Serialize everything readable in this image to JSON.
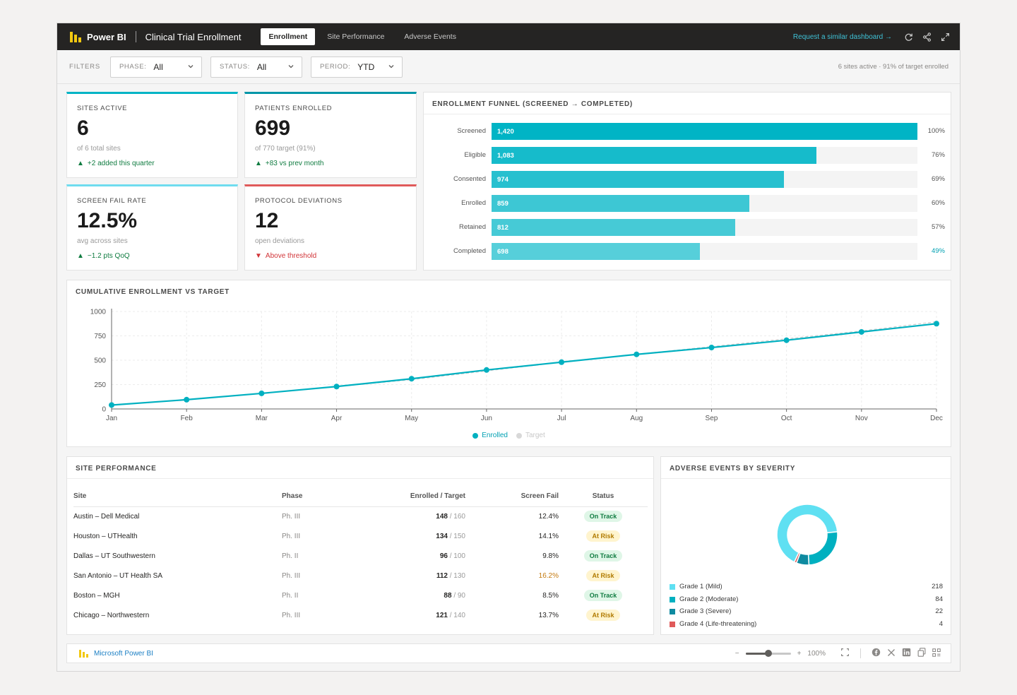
{
  "header": {
    "brand": "Power BI",
    "report_title": "Clinical Trial Enrollment",
    "tabs": [
      {
        "label": "Enrollment",
        "active": true
      },
      {
        "label": "Site Performance",
        "active": false
      },
      {
        "label": "Adverse Events",
        "active": false
      }
    ],
    "request_link": "Request a similar dashboard →",
    "icons": [
      "refresh-icon",
      "share-icon",
      "fullscreen-icon"
    ]
  },
  "filters": {
    "label": "FILTERS",
    "phase": {
      "label": "PHASE:",
      "value": "All"
    },
    "status": {
      "label": "STATUS:",
      "value": "All"
    },
    "period": {
      "label": "PERIOD:",
      "value": "YTD"
    },
    "summary": "6 sites active · 91% of target enrolled"
  },
  "kpis": [
    {
      "label": "SITES ACTIVE",
      "value": "6",
      "sub": "of 6 total sites",
      "trend": "+2 added this quarter",
      "direction": "up",
      "color": "#00b4c5"
    },
    {
      "label": "PATIENTS ENROLLED",
      "value": "699",
      "sub": "of 770 target (91%)",
      "trend": "+83 vs prev month",
      "direction": "up",
      "color": "#0096a8"
    },
    {
      "label": "SCREEN FAIL RATE",
      "value": "12.5%",
      "sub": "avg across sites",
      "trend": "−1.2 pts QoQ",
      "direction": "up",
      "color": "#6fdcef"
    },
    {
      "label": "PROTOCOL DEVIATIONS",
      "value": "12",
      "sub": "open deviations",
      "trend": "Above threshold",
      "direction": "down",
      "color": "#e05a5a"
    }
  ],
  "funnel": {
    "title": "ENROLLMENT FUNNEL (SCREENED → COMPLETED)",
    "stages": [
      {
        "label": "Screened",
        "value": "1,420",
        "pct": "100%",
        "fraction": 1.0,
        "color": "#00b4c5"
      },
      {
        "label": "Eligible",
        "value": "1,083",
        "pct": "76%",
        "fraction": 0.763,
        "color": "#16bbcb"
      },
      {
        "label": "Consented",
        "value": "974",
        "pct": "69%",
        "fraction": 0.686,
        "color": "#27c0cf"
      },
      {
        "label": "Enrolled",
        "value": "859",
        "pct": "60%",
        "fraction": 0.605,
        "color": "#3dc7d4"
      },
      {
        "label": "Retained",
        "value": "812",
        "pct": "57%",
        "fraction": 0.572,
        "color": "#46cad6"
      },
      {
        "label": "Completed",
        "value": "698",
        "pct": "49%",
        "fraction": 0.49,
        "color": "#56cfda"
      }
    ]
  },
  "line_chart": {
    "title": "CUMULATIVE ENROLLMENT VS TARGET",
    "legend": {
      "enrolled": "Enrolled",
      "target": "Target"
    }
  },
  "chart_data": {
    "type": "line",
    "x": [
      "Jan",
      "Feb",
      "Mar",
      "Apr",
      "May",
      "Jun",
      "Jul",
      "Aug",
      "Sep",
      "Oct",
      "Nov",
      "Dec"
    ],
    "series": [
      {
        "name": "Enrolled",
        "values": [
          40,
          95,
          160,
          230,
          310,
          400,
          480,
          560,
          630,
          705,
          790,
          875
        ],
        "color": "#00b0c0"
      },
      {
        "name": "Target",
        "values": [
          40,
          95,
          160,
          230,
          300,
          390,
          480,
          560,
          640,
          720,
          800,
          895
        ],
        "color": "#cccccc"
      }
    ],
    "yticks": [
      "0",
      "250",
      "500",
      "750",
      "1000"
    ],
    "ylim": [
      0,
      1000
    ],
    "grid": true,
    "legend_position": "bottom-center"
  },
  "site_table": {
    "title": "SITE PERFORMANCE",
    "columns": [
      "Site",
      "Phase",
      "Enrolled / Target",
      "Screen Fail",
      "Status"
    ],
    "rows": [
      {
        "site": "Austin – Dell Medical",
        "phase": "Ph. III",
        "enrolled": "148",
        "target": "/ 160",
        "fail": "12.4%",
        "fail_warn": false,
        "status": "On Track"
      },
      {
        "site": "Houston – UTHealth",
        "phase": "Ph. III",
        "enrolled": "134",
        "target": "/ 150",
        "fail": "14.1%",
        "fail_warn": false,
        "status": "At Risk"
      },
      {
        "site": "Dallas – UT Southwestern",
        "phase": "Ph. II",
        "enrolled": "96",
        "target": "/ 100",
        "fail": "9.8%",
        "fail_warn": false,
        "status": "On Track"
      },
      {
        "site": "San Antonio – UT Health SA",
        "phase": "Ph. III",
        "enrolled": "112",
        "target": "/ 130",
        "fail": "16.2%",
        "fail_warn": true,
        "status": "At Risk"
      },
      {
        "site": "Boston – MGH",
        "phase": "Ph. II",
        "enrolled": "88",
        "target": "/ 90",
        "fail": "8.5%",
        "fail_warn": false,
        "status": "On Track"
      },
      {
        "site": "Chicago – Northwestern",
        "phase": "Ph. III",
        "enrolled": "121",
        "target": "/ 140",
        "fail": "13.7%",
        "fail_warn": false,
        "status": "At Risk"
      }
    ]
  },
  "adverse_events": {
    "title": "ADVERSE EVENTS BY SEVERITY",
    "items": [
      {
        "label": "Grade 1 (Mild)",
        "value": "218",
        "count": 218,
        "color": "#5fe0f2"
      },
      {
        "label": "Grade 2 (Moderate)",
        "value": "84",
        "count": 84,
        "color": "#00b0c0"
      },
      {
        "label": "Grade 3 (Severe)",
        "value": "22",
        "count": 22,
        "color": "#0e8aa0"
      },
      {
        "label": "Grade 4 (Life-threatening)",
        "value": "4",
        "count": 4,
        "color": "#e05a5a"
      }
    ]
  },
  "footer": {
    "brand": "Microsoft Power BI",
    "zoom": "100%",
    "zoom_fraction": 0.5,
    "icons": [
      "zoom-out-icon",
      "zoom-in-icon",
      "fit-page-icon",
      "facebook-icon",
      "x-icon",
      "linkedin-icon",
      "copy-icon",
      "qr-icon"
    ]
  },
  "colors": {
    "accent": "#00b4c5",
    "on_track_bg": "#dff6e7",
    "on_track_fg": "#107c41",
    "at_risk_bg": "#fff4ce",
    "at_risk_fg": "#b07a00",
    "warn_text": "#c47a10"
  }
}
